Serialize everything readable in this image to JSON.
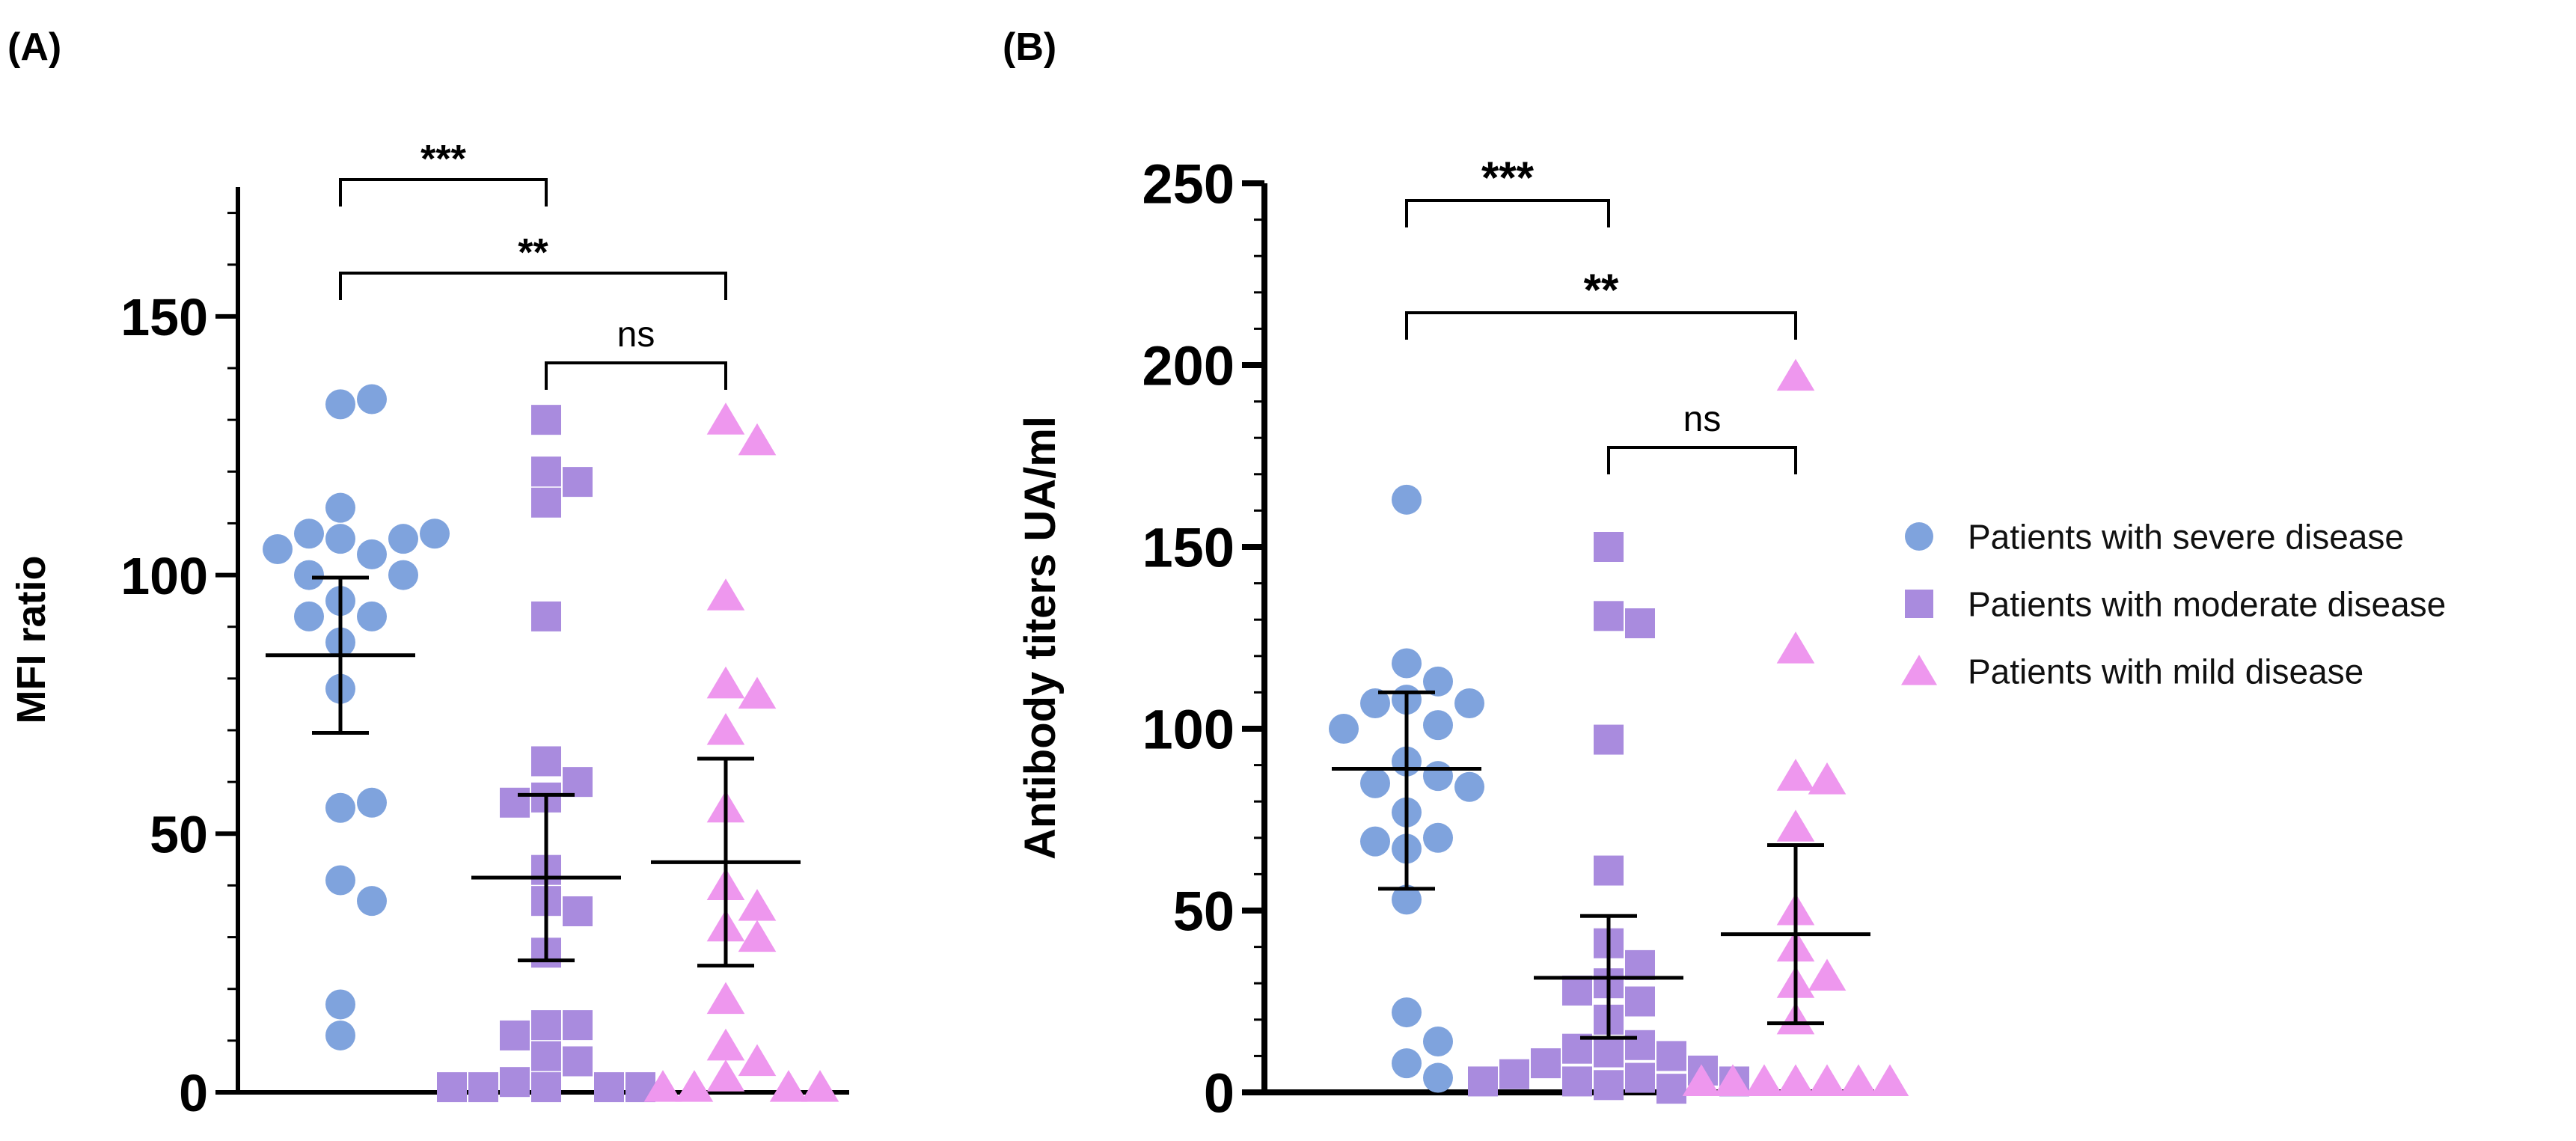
{
  "colors": {
    "severe": "#7fa3dd",
    "moderate": "#a98bde",
    "mild": "#ee97ee",
    "axis": "#000000"
  },
  "legend": [
    {
      "key": "severe",
      "label": "Patients with severe disease",
      "marker": "circle"
    },
    {
      "key": "moderate",
      "label": "Patients with moderate disease",
      "marker": "square"
    },
    {
      "key": "mild",
      "label": "Patients with mild disease",
      "marker": "triangle"
    }
  ],
  "chart_data": [
    {
      "panel_label": "(A)",
      "type": "scatter",
      "ylabel": "MFI ratio",
      "ylim": [
        0,
        175
      ],
      "yticks": [
        0,
        50,
        100,
        150
      ],
      "ytick_labels": [
        "0",
        "50",
        "100",
        "150"
      ],
      "minor_step": 10,
      "groups": [
        {
          "key": "severe",
          "mean": 84.5,
          "ci": [
            69.5,
            99.5
          ],
          "values": [
            133,
            134,
            113,
            107,
            104,
            108,
            107,
            105,
            108,
            95,
            100,
            100,
            92,
            92,
            87,
            78,
            55,
            56,
            41,
            37,
            17,
            11
          ]
        },
        {
          "key": "moderate",
          "mean": 41.5,
          "ci": [
            25.5,
            57.5
          ],
          "values": [
            130,
            120,
            118,
            114,
            92,
            64,
            60,
            57,
            56,
            43,
            37,
            35,
            27,
            13,
            13,
            11,
            7,
            6,
            2,
            1,
            1,
            1,
            1,
            1
          ]
        },
        {
          "key": "mild",
          "mean": 44.5,
          "ci": [
            24.5,
            64.5
          ],
          "values": [
            130,
            126,
            96,
            79,
            77,
            70,
            55,
            40,
            36,
            32,
            30,
            18,
            9,
            6,
            3,
            1,
            1,
            1,
            1
          ]
        }
      ],
      "comparisons": [
        {
          "from": 0,
          "to": 1,
          "label": "***",
          "level": 0
        },
        {
          "from": 0,
          "to": 2,
          "label": "**",
          "level": 1
        },
        {
          "from": 1,
          "to": 2,
          "label": "ns",
          "level": 2
        }
      ]
    },
    {
      "panel_label": "(B)",
      "type": "scatter",
      "ylabel": "Antibody titers UA/ml",
      "ylim": [
        0,
        250
      ],
      "yticks": [
        0,
        50,
        100,
        150,
        200,
        250
      ],
      "ytick_labels": [
        "0",
        "50",
        "100",
        "150",
        "200",
        "250"
      ],
      "minor_step": 10,
      "groups": [
        {
          "key": "severe",
          "mean": 89,
          "ci": [
            56,
            110
          ],
          "values": [
            163,
            118,
            113,
            108,
            107,
            107,
            101,
            100,
            91,
            87,
            85,
            84,
            77,
            70,
            69,
            67,
            53,
            22,
            14,
            8,
            4
          ]
        },
        {
          "key": "moderate",
          "mean": 31.5,
          "ci": [
            15,
            48.5
          ],
          "values": [
            150,
            131,
            129,
            97,
            61,
            41,
            35,
            30,
            28,
            25,
            20,
            13,
            12,
            11,
            10,
            8,
            6,
            5,
            4,
            3,
            3,
            3,
            2,
            1
          ]
        },
        {
          "key": "mild",
          "mean": 43.5,
          "ci": [
            19,
            68
          ],
          "values": [
            197,
            122,
            87,
            86,
            73,
            50,
            40,
            32,
            30,
            20,
            3,
            3,
            3,
            3,
            3,
            3,
            3
          ]
        }
      ],
      "comparisons": [
        {
          "from": 0,
          "to": 1,
          "label": "***",
          "level": 0
        },
        {
          "from": 0,
          "to": 2,
          "label": "**",
          "level": 1
        },
        {
          "from": 1,
          "to": 2,
          "label": "ns",
          "level": 2
        }
      ]
    }
  ]
}
